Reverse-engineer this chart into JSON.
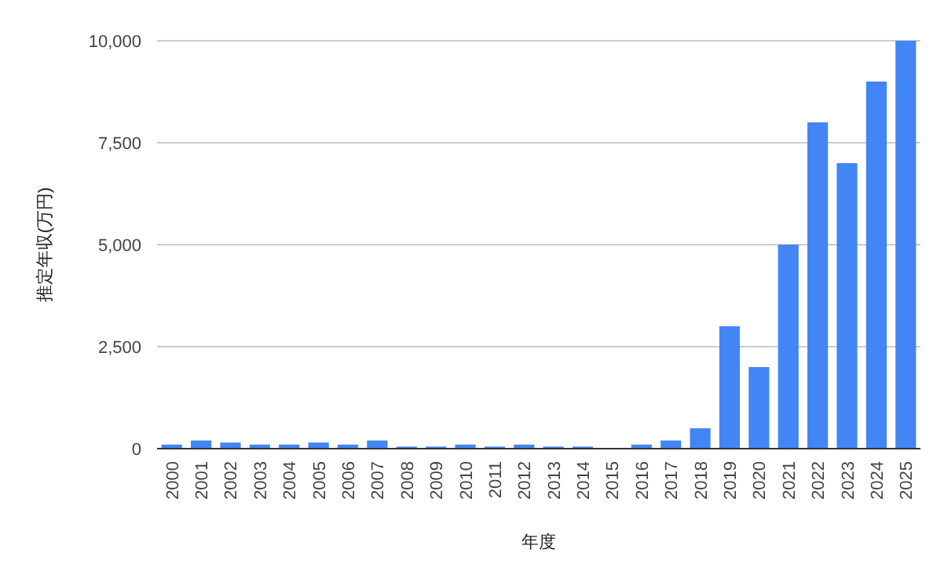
{
  "chart_data": {
    "type": "bar",
    "xlabel": "年度",
    "ylabel": "推定年収(万円)",
    "categories": [
      "2000",
      "2001",
      "2002",
      "2003",
      "2004",
      "2005",
      "2006",
      "2007",
      "2008",
      "2009",
      "2010",
      "2011",
      "2012",
      "2013",
      "2014",
      "2015",
      "2016",
      "2017",
      "2018",
      "2019",
      "2020",
      "2021",
      "2022",
      "2023",
      "2024",
      "2025"
    ],
    "values": [
      100,
      200,
      150,
      100,
      100,
      150,
      100,
      200,
      50,
      50,
      100,
      50,
      100,
      50,
      50,
      0,
      100,
      200,
      500,
      3000,
      2000,
      5000,
      8000,
      7000,
      9000,
      10000
    ],
    "color": "#4285f4",
    "ylim": [
      0,
      10000
    ],
    "yticks": [
      0,
      {
        "value": 2500,
        "label": "2,500"
      },
      {
        "value": 5000,
        "label": "5,000"
      },
      {
        "value": 7500,
        "label": "7,500"
      },
      {
        "value": 10000,
        "label": "10,000"
      }
    ],
    "grid": "y"
  }
}
